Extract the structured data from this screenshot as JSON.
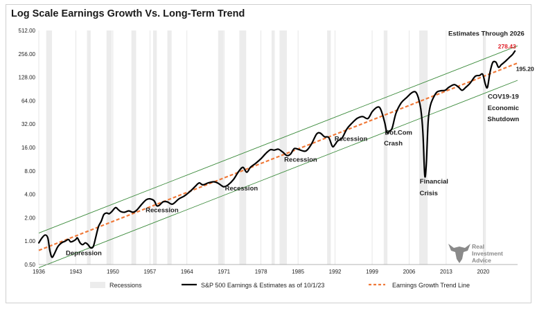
{
  "chart_data": {
    "type": "line",
    "title": "Log Scale Earnings Growth Vs. Long-Term Trend",
    "y_scale": "log2",
    "ylim": [
      0.5,
      512
    ],
    "xlim": [
      1936,
      2026.5
    ],
    "y_ticks": [
      {
        "value": 0.5,
        "label": "0.50"
      },
      {
        "value": 1,
        "label": "1.00"
      },
      {
        "value": 2,
        "label": "2.00"
      },
      {
        "value": 4,
        "label": "4.00"
      },
      {
        "value": 8,
        "label": "8.00"
      },
      {
        "value": 16,
        "label": "16.00"
      },
      {
        "value": 32,
        "label": "32.00"
      },
      {
        "value": 64,
        "label": "64.00"
      },
      {
        "value": 128,
        "label": "128.00"
      },
      {
        "value": 256,
        "label": "256.00"
      },
      {
        "value": 512,
        "label": "512.00"
      }
    ],
    "x_ticks": [
      {
        "value": 1936,
        "label": "1936"
      },
      {
        "value": 1943,
        "label": "1943"
      },
      {
        "value": 1950,
        "label": "1950"
      },
      {
        "value": 1957,
        "label": "1957"
      },
      {
        "value": 1964,
        "label": "1964"
      },
      {
        "value": 1971,
        "label": "1971"
      },
      {
        "value": 1978,
        "label": "1978"
      },
      {
        "value": 1985,
        "label": "1985"
      },
      {
        "value": 1992,
        "label": "1992"
      },
      {
        "value": 1999,
        "label": "1999"
      },
      {
        "value": 2006,
        "label": "2006"
      },
      {
        "value": 2013,
        "label": "2013"
      },
      {
        "value": 2020,
        "label": "2020"
      }
    ],
    "grid": "vertical",
    "recessions": [
      [
        1937.4,
        1938.5
      ],
      [
        1945.1,
        1945.8
      ],
      [
        1948.8,
        1949.8
      ],
      [
        1953.5,
        1954.4
      ],
      [
        1957.6,
        1958.3
      ],
      [
        1960.3,
        1961.1
      ],
      [
        1969.9,
        1970.9
      ],
      [
        1973.9,
        1975.2
      ],
      [
        1980.0,
        1980.6
      ],
      [
        1981.5,
        1982.9
      ],
      [
        1990.5,
        1991.2
      ],
      [
        2001.2,
        2001.9
      ],
      [
        2007.9,
        2009.5
      ],
      [
        2020.1,
        2020.5
      ]
    ],
    "series": [
      {
        "name": "S&P 500 Earnings & Estimates as of 10/1/23",
        "color": "#000000",
        "points": [
          [
            1936.0,
            0.95
          ],
          [
            1936.6,
            1.1
          ],
          [
            1937.2,
            1.2
          ],
          [
            1937.7,
            1.1
          ],
          [
            1938.1,
            0.75
          ],
          [
            1938.5,
            0.62
          ],
          [
            1939.0,
            0.7
          ],
          [
            1939.6,
            0.85
          ],
          [
            1940.3,
            0.95
          ],
          [
            1941.0,
            1.0
          ],
          [
            1941.6,
            1.05
          ],
          [
            1942.0,
            0.98
          ],
          [
            1942.5,
            1.0
          ],
          [
            1943.0,
            1.05
          ],
          [
            1943.3,
            1.1
          ],
          [
            1943.8,
            0.95
          ],
          [
            1944.3,
            0.9
          ],
          [
            1944.8,
            0.95
          ],
          [
            1945.3,
            0.9
          ],
          [
            1945.8,
            0.82
          ],
          [
            1946.3,
            0.85
          ],
          [
            1946.8,
            1.15
          ],
          [
            1947.3,
            1.55
          ],
          [
            1947.8,
            1.8
          ],
          [
            1948.3,
            2.2
          ],
          [
            1948.8,
            2.3
          ],
          [
            1949.3,
            2.25
          ],
          [
            1949.8,
            2.4
          ],
          [
            1950.5,
            2.7
          ],
          [
            1951.0,
            2.55
          ],
          [
            1951.5,
            2.4
          ],
          [
            1952.2,
            2.35
          ],
          [
            1953.0,
            2.45
          ],
          [
            1953.8,
            2.35
          ],
          [
            1954.5,
            2.5
          ],
          [
            1955.5,
            3.0
          ],
          [
            1956.3,
            3.4
          ],
          [
            1957.0,
            3.5
          ],
          [
            1957.8,
            3.3
          ],
          [
            1958.3,
            2.85
          ],
          [
            1958.8,
            2.9
          ],
          [
            1959.5,
            3.2
          ],
          [
            1960.3,
            3.2
          ],
          [
            1961.0,
            3.0
          ],
          [
            1961.5,
            3.05
          ],
          [
            1962.5,
            3.5
          ],
          [
            1963.5,
            3.8
          ],
          [
            1964.5,
            4.3
          ],
          [
            1965.5,
            5.0
          ],
          [
            1966.3,
            5.6
          ],
          [
            1967.0,
            5.3
          ],
          [
            1968.0,
            5.6
          ],
          [
            1969.0,
            5.8
          ],
          [
            1969.8,
            5.6
          ],
          [
            1970.5,
            5.2
          ],
          [
            1971.0,
            5.0
          ],
          [
            1971.8,
            5.3
          ],
          [
            1972.8,
            6.2
          ],
          [
            1973.8,
            7.9
          ],
          [
            1974.6,
            8.9
          ],
          [
            1975.3,
            7.7
          ],
          [
            1976.0,
            8.9
          ],
          [
            1977.0,
            10.0
          ],
          [
            1978.0,
            11.5
          ],
          [
            1979.0,
            13.6
          ],
          [
            1979.8,
            15.0
          ],
          [
            1980.5,
            14.8
          ],
          [
            1981.3,
            15.2
          ],
          [
            1982.2,
            13.8
          ],
          [
            1982.9,
            12.6
          ],
          [
            1983.6,
            13.2
          ],
          [
            1984.3,
            15.5
          ],
          [
            1985.2,
            15.0
          ],
          [
            1986.0,
            14.4
          ],
          [
            1986.6,
            14.6
          ],
          [
            1987.5,
            17.5
          ],
          [
            1988.5,
            23.8
          ],
          [
            1989.2,
            24.5
          ],
          [
            1990.0,
            22.0
          ],
          [
            1990.8,
            21.5
          ],
          [
            1991.5,
            16.5
          ],
          [
            1992.0,
            17.5
          ],
          [
            1992.5,
            19.5
          ],
          [
            1993.3,
            21.0
          ],
          [
            1994.2,
            27.5
          ],
          [
            1995.2,
            33.0
          ],
          [
            1996.2,
            38.0
          ],
          [
            1997.2,
            40.0
          ],
          [
            1998.2,
            37.7
          ],
          [
            1999.0,
            46.0
          ],
          [
            1999.8,
            52.0
          ],
          [
            2000.4,
            52.5
          ],
          [
            2000.9,
            44.0
          ],
          [
            2001.4,
            33.0
          ],
          [
            2001.8,
            25.0
          ],
          [
            2002.3,
            26.0
          ],
          [
            2002.8,
            28.5
          ],
          [
            2003.5,
            44.0
          ],
          [
            2004.5,
            60.0
          ],
          [
            2005.5,
            70.0
          ],
          [
            2006.5,
            81.0
          ],
          [
            2007.2,
            83.0
          ],
          [
            2007.7,
            71.0
          ],
          [
            2008.2,
            50.0
          ],
          [
            2008.6,
            25.0
          ],
          [
            2008.95,
            7.0
          ],
          [
            2009.25,
            10.0
          ],
          [
            2009.6,
            35.0
          ],
          [
            2010.0,
            55.0
          ],
          [
            2010.5,
            68.0
          ],
          [
            2011.2,
            82.0
          ],
          [
            2012.0,
            86.0
          ],
          [
            2012.8,
            87.0
          ],
          [
            2013.5,
            95.0
          ],
          [
            2014.5,
            103.0
          ],
          [
            2015.3,
            96.0
          ],
          [
            2016.0,
            87.0
          ],
          [
            2016.7,
            95.0
          ],
          [
            2017.5,
            107.0
          ],
          [
            2018.5,
            132.0
          ],
          [
            2019.3,
            135.0
          ],
          [
            2019.9,
            140.0
          ],
          [
            2020.4,
            105.0
          ],
          [
            2020.8,
            95.0
          ],
          [
            2021.3,
            150.0
          ],
          [
            2021.8,
            198.0
          ],
          [
            2022.4,
            200.0
          ],
          [
            2022.9,
            172.0
          ],
          [
            2023.4,
            185.0
          ],
          [
            2024.0,
            200.0
          ],
          [
            2024.5,
            215.0
          ],
          [
            2025.0,
            232.0
          ],
          [
            2025.5,
            250.0
          ],
          [
            2026.0,
            278.43
          ]
        ]
      },
      {
        "name": "Earnings Growth Trend Line",
        "color": "#f07a3a",
        "style": "dashed",
        "points": [
          [
            1936.0,
            0.76
          ],
          [
            2026.5,
            195.2
          ]
        ]
      }
    ],
    "trend_channel": {
      "color": "#3a8a3a",
      "upper": [
        [
          1936.0,
          1.27
        ],
        [
          2026.5,
          325.0
        ]
      ],
      "lower": [
        [
          1936.0,
          0.455
        ],
        [
          2026.5,
          117.0
        ]
      ]
    },
    "annotations": [
      {
        "text": "Depression",
        "x": 1944.5,
        "y": 0.66
      },
      {
        "text": "Recession",
        "x": 1959.3,
        "y": 2.35
      },
      {
        "text": "Recession",
        "x": 1974.3,
        "y": 4.5
      },
      {
        "text": "Recession",
        "x": 1985.5,
        "y": 10.5
      },
      {
        "text": "Recession",
        "x": 1995.0,
        "y": 19.5
      },
      {
        "text": "Dot.Com",
        "x": 2004.0,
        "y": 23.5
      },
      {
        "text": "Crash",
        "x": 2003.0,
        "y": 17.0
      },
      {
        "text": "Financial",
        "x": 2010.7,
        "y": 5.5
      },
      {
        "text": "Crisis",
        "x": 2009.7,
        "y": 3.9
      },
      {
        "text": "COV19-19",
        "x": 2023.8,
        "y": 68.0
      },
      {
        "text": "Economic",
        "x": 2023.8,
        "y": 48.5
      },
      {
        "text": "Shutdown",
        "x": 2023.8,
        "y": 35.0
      },
      {
        "text": "Estimates Through 2026",
        "x": 2020.6,
        "y": 440.0
      }
    ],
    "value_labels": [
      {
        "text": "278.43",
        "x": 2024.5,
        "y": 300.0,
        "color": "#e0202a"
      },
      {
        "text": "195.20",
        "x": 2027.9,
        "y": 155.0,
        "color": "#1a1a1a"
      }
    ],
    "legend": {
      "placement": "bottom",
      "items": [
        {
          "label": "Recessions",
          "kind": "box",
          "color": "#ececec"
        },
        {
          "label": "S&P 500 Earnings & Estimates as of 10/1/23",
          "kind": "line",
          "color": "#000000"
        },
        {
          "label": "Earnings Growth Trend Line",
          "kind": "dashed",
          "color": "#f07a3a"
        }
      ]
    }
  },
  "brand": {
    "line1": "Real",
    "line2": "Investment",
    "line3": "Advice",
    "icon": "bull-head-icon",
    "color": "#8a8a8a"
  }
}
